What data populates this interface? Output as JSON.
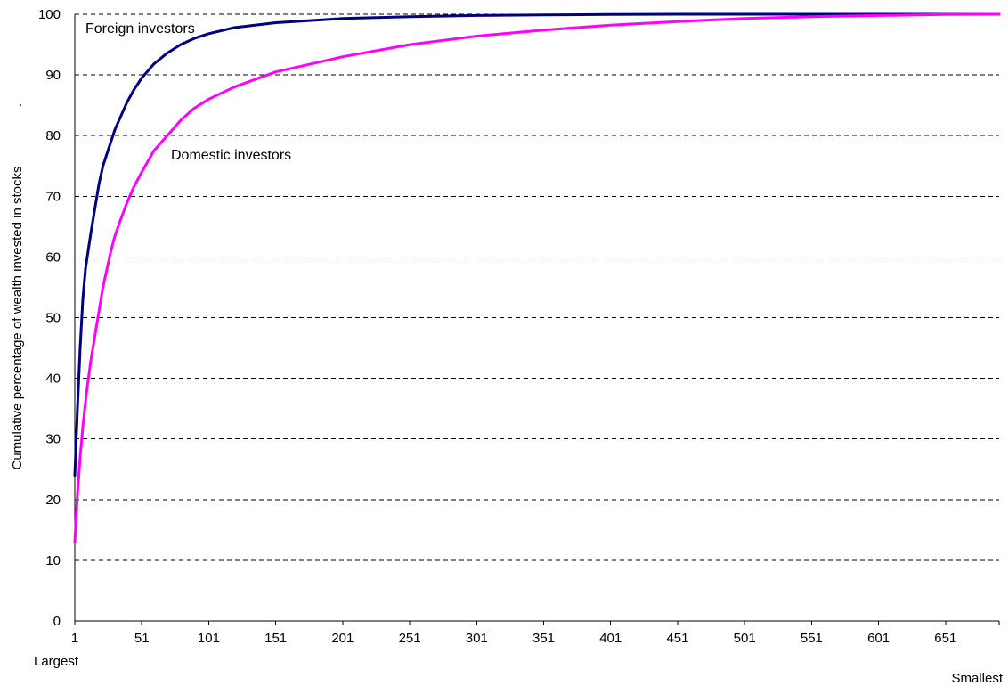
{
  "chart_data": {
    "type": "line",
    "title": "",
    "xlabel": "",
    "ylabel": "Cumulative percentage of wealth invested in stocks",
    "ylabel_suffix": ".",
    "x_start_label": "Largest",
    "x_end_label": "Smallest",
    "xlim": [
      1,
      691
    ],
    "ylim": [
      0,
      100
    ],
    "x_ticks": [
      1,
      51,
      101,
      151,
      201,
      251,
      301,
      351,
      401,
      451,
      501,
      551,
      601,
      651
    ],
    "x_tick_labels": [
      "1",
      "51",
      "101",
      "151",
      "201",
      "251",
      "301",
      "351",
      "401",
      "451",
      "501",
      "551",
      "601",
      "651"
    ],
    "y_ticks": [
      0,
      10,
      20,
      30,
      40,
      50,
      60,
      70,
      80,
      90,
      100
    ],
    "y_tick_labels": [
      "0",
      "10",
      "20",
      "30",
      "40",
      "50",
      "60",
      "70",
      "80",
      "90",
      "100"
    ],
    "grid": "horizontal-dashed",
    "legend": "none",
    "series": [
      {
        "name": "Foreign investors",
        "color": "#000080",
        "x": [
          1,
          3,
          5,
          7,
          9,
          11,
          13,
          16,
          19,
          22,
          25,
          28,
          31,
          35,
          40,
          45,
          51,
          60,
          70,
          80,
          90,
          101,
          120,
          151,
          201,
          251,
          301,
          351,
          401,
          451,
          501,
          551,
          601,
          651,
          691
        ],
        "y": [
          24,
          35,
          45,
          53,
          58,
          61,
          64,
          68,
          72,
          75,
          77,
          79,
          81,
          83,
          85.5,
          87.5,
          89.5,
          91.8,
          93.6,
          95,
          96,
          96.8,
          97.8,
          98.6,
          99.3,
          99.6,
          99.8,
          99.9,
          99.95,
          100,
          100,
          100,
          100,
          100,
          100
        ]
      },
      {
        "name": "Domestic investors",
        "color": "#FF00FF",
        "x": [
          1,
          3,
          5,
          7,
          10,
          13,
          16,
          19,
          22,
          25,
          28,
          31,
          35,
          40,
          45,
          51,
          60,
          70,
          80,
          90,
          101,
          120,
          151,
          201,
          251,
          301,
          351,
          401,
          451,
          501,
          551,
          601,
          651,
          691
        ],
        "y": [
          13,
          21,
          27,
          32,
          38,
          43,
          47,
          51,
          55,
          58,
          61,
          63.5,
          66,
          69,
          71.5,
          74,
          77.5,
          80,
          82.5,
          84.5,
          86,
          88,
          90.5,
          93,
          95,
          96.4,
          97.4,
          98.2,
          98.8,
          99.3,
          99.6,
          99.8,
          99.95,
          100
        ]
      }
    ],
    "annotations": [
      {
        "text": "Foreign investors",
        "series": "Foreign investors"
      },
      {
        "text": "Domestic investors",
        "series": "Domestic investors"
      }
    ]
  }
}
